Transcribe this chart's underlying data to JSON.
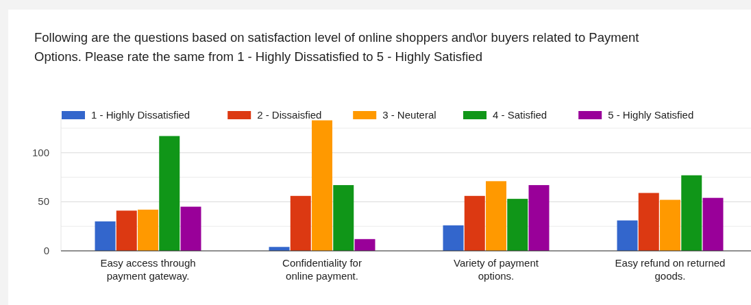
{
  "chart_data": {
    "type": "bar",
    "title": "Following are the questions based on satisfaction level of online shoppers and\\or buyers related to Payment Options. Please rate the same from 1 - Highly Dissatisfied to 5 - Highly Satisfied",
    "categories": [
      "Easy access through payment gateway.",
      "Confidentiality for online payment.",
      "Variety of payment options.",
      "Easy refund on returned goods."
    ],
    "series": [
      {
        "name": "1 - Highly Dissatisfied",
        "color": "#3366cc",
        "values": [
          30,
          4,
          26,
          31
        ]
      },
      {
        "name": "2 - Dissaisfied",
        "color": "#dc3912",
        "values": [
          41,
          56,
          56,
          59
        ]
      },
      {
        "name": "3 - Neuteral",
        "color": "#ff9900",
        "values": [
          42,
          133,
          71,
          52
        ]
      },
      {
        "name": "4 - Satisfied",
        "color": "#109618",
        "values": [
          117,
          67,
          53,
          77
        ]
      },
      {
        "name": "5 - Highly Satisfied",
        "color": "#990099",
        "values": [
          45,
          12,
          67,
          54
        ]
      }
    ],
    "ylim": [
      0,
      135
    ],
    "yticks": [
      0,
      {
        "value": 25,
        "label": null
      },
      50,
      {
        "value": 75,
        "label": null
      },
      100,
      {
        "value": 125,
        "label": null
      }
    ],
    "grid": true,
    "legend": "top left"
  }
}
